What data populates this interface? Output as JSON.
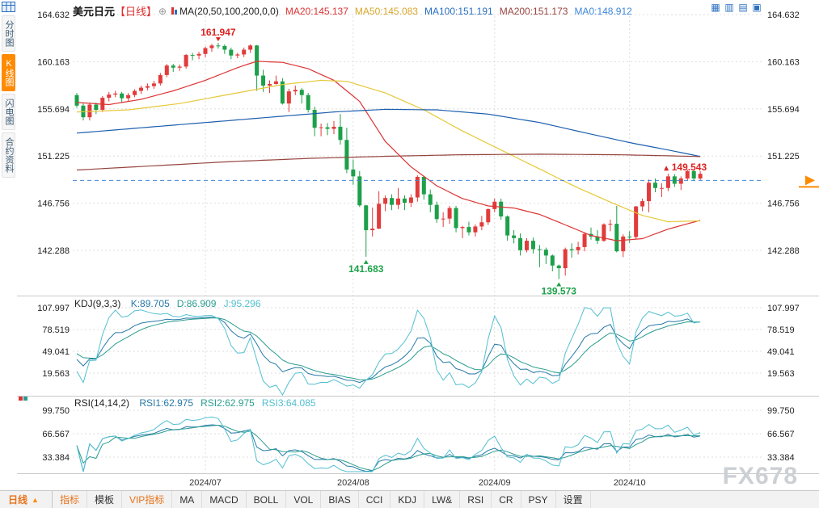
{
  "header": {
    "symbol": "美元日元",
    "period_tag": "【日线】",
    "expand_icon": "⊕",
    "ma_label": "MA(20,50,100,200,0,0)",
    "ma_items": [
      {
        "label": "MA20:145.137",
        "color": "#dd3333"
      },
      {
        "label": "MA50:145.083",
        "color": "#d9a62a"
      },
      {
        "label": "MA100:151.191",
        "color": "#2a6fc0"
      },
      {
        "label": "MA200:151.173",
        "color": "#96453f"
      },
      {
        "label": "MA0:148.912",
        "color": "#3f87d9"
      }
    ]
  },
  "sidebar": {
    "items": [
      {
        "name": "time-chart",
        "label": "分时图",
        "selected": false
      },
      {
        "name": "candle-chart",
        "label": "K线图",
        "selected": true
      },
      {
        "name": "quick-chart",
        "label": "闪电图",
        "selected": false
      },
      {
        "name": "contract-info",
        "label": "合约资料",
        "selected": false
      }
    ]
  },
  "top_right_icons": [
    {
      "name": "grid-layout-icon",
      "glyph": "▦"
    },
    {
      "name": "two-pane-layout-icon",
      "glyph": "▥"
    },
    {
      "name": "three-pane-layout-icon",
      "glyph": "▤"
    },
    {
      "name": "four-pane-layout-icon",
      "glyph": "▣"
    }
  ],
  "toolbar": {
    "period_label": "日线",
    "period_arrow": "▲",
    "items": [
      {
        "name": "indicators",
        "label": "指标",
        "accent": true
      },
      {
        "name": "templates",
        "label": "模板",
        "accent": false
      },
      {
        "name": "vip-indicators",
        "label": "VIP指标",
        "accent": true
      },
      {
        "name": "ma",
        "label": "MA",
        "accent": false
      },
      {
        "name": "macd",
        "label": "MACD",
        "accent": false
      },
      {
        "name": "boll",
        "label": "BOLL",
        "accent": false
      },
      {
        "name": "vol",
        "label": "VOL",
        "accent": false
      },
      {
        "name": "bias",
        "label": "BIAS",
        "accent": false
      },
      {
        "name": "cci",
        "label": "CCI",
        "accent": false
      },
      {
        "name": "kdj",
        "label": "KDJ",
        "accent": false
      },
      {
        "name": "lwr",
        "label": "LW&",
        "accent": false
      },
      {
        "name": "rsi",
        "label": "RSI",
        "accent": false
      },
      {
        "name": "cr",
        "label": "CR",
        "accent": false
      },
      {
        "name": "psy",
        "label": "PSY",
        "accent": false
      },
      {
        "name": "settings",
        "label": "设置",
        "accent": false
      }
    ]
  },
  "watermark": "FX678",
  "chart_data": {
    "type": "candlestick",
    "title": "美元日元 日线",
    "up_color": "#e23b3b",
    "down_color": "#1ca049",
    "grid": true,
    "price_axis_ticks": [
      "164.632",
      "160.163",
      "155.694",
      "151.225",
      "146.756",
      "142.288"
    ],
    "x_tick_labels": [
      "2024/07",
      "2024/08",
      "2024/09",
      "2024/10"
    ],
    "x_tick_indices": [
      20,
      43,
      65,
      86
    ],
    "candles_ohlc": [
      [
        157.0,
        157.2,
        155.8,
        156.0
      ],
      [
        156.0,
        156.2,
        154.6,
        154.9
      ],
      [
        154.9,
        156.3,
        154.6,
        156.1
      ],
      [
        156.1,
        156.3,
        155.2,
        155.6
      ],
      [
        155.6,
        156.9,
        155.4,
        156.75
      ],
      [
        156.75,
        157.3,
        156.4,
        157.05
      ],
      [
        157.05,
        157.4,
        156.8,
        157.15
      ],
      [
        157.15,
        157.3,
        156.3,
        156.7
      ],
      [
        156.7,
        157.2,
        156.4,
        157.0
      ],
      [
        157.0,
        157.55,
        156.8,
        157.4
      ],
      [
        157.4,
        157.9,
        157.1,
        157.7
      ],
      [
        157.7,
        158.1,
        157.45,
        157.85
      ],
      [
        157.85,
        158.35,
        157.6,
        158.1
      ],
      [
        158.1,
        159.1,
        157.9,
        158.9
      ],
      [
        158.9,
        159.95,
        158.7,
        159.8
      ],
      [
        159.8,
        159.95,
        159.2,
        159.6
      ],
      [
        159.6,
        159.9,
        159.3,
        159.7
      ],
      [
        159.7,
        160.9,
        159.5,
        160.8
      ],
      [
        160.8,
        161.0,
        160.3,
        160.75
      ],
      [
        160.75,
        161.1,
        160.4,
        160.9
      ],
      [
        160.9,
        161.6,
        160.6,
        161.45
      ],
      [
        161.45,
        161.85,
        161.1,
        161.7
      ],
      [
        161.7,
        161.947,
        161.4,
        161.65
      ],
      [
        161.65,
        161.8,
        160.9,
        161.3
      ],
      [
        161.3,
        161.5,
        160.4,
        160.75
      ],
      [
        160.75,
        161.0,
        160.5,
        160.85
      ],
      [
        160.85,
        161.5,
        160.6,
        161.3
      ],
      [
        161.3,
        161.8,
        161.0,
        161.7
      ],
      [
        161.7,
        161.75,
        157.4,
        158.85
      ],
      [
        158.85,
        159.4,
        157.3,
        157.9
      ],
      [
        157.9,
        158.4,
        157.2,
        158.05
      ],
      [
        158.05,
        158.85,
        158.0,
        158.3
      ],
      [
        158.3,
        158.6,
        156.1,
        156.2
      ],
      [
        156.2,
        157.6,
        155.4,
        157.35
      ],
      [
        157.35,
        157.9,
        157.0,
        157.5
      ],
      [
        157.5,
        157.65,
        156.2,
        157.0
      ],
      [
        157.0,
        157.2,
        155.35,
        155.6
      ],
      [
        155.6,
        155.9,
        153.1,
        153.9
      ],
      [
        153.9,
        154.3,
        153.1,
        153.95
      ],
      [
        153.95,
        154.35,
        153.2,
        153.8
      ],
      [
        153.8,
        154.55,
        153.3,
        154.0
      ],
      [
        154.0,
        155.2,
        152.3,
        152.75
      ],
      [
        152.75,
        153.9,
        149.6,
        149.95
      ],
      [
        149.95,
        150.9,
        148.5,
        149.3
      ],
      [
        149.3,
        149.8,
        146.4,
        146.55
      ],
      [
        146.55,
        146.6,
        141.683,
        144.2
      ],
      [
        144.2,
        146.35,
        143.6,
        144.35
      ],
      [
        144.35,
        147.9,
        144.3,
        146.7
      ],
      [
        146.7,
        147.5,
        146.0,
        147.25
      ],
      [
        147.25,
        147.6,
        146.1,
        146.6
      ],
      [
        146.6,
        148.2,
        146.2,
        147.2
      ],
      [
        147.2,
        147.5,
        146.1,
        146.8
      ],
      [
        146.8,
        147.6,
        146.4,
        147.3
      ],
      [
        147.3,
        149.4,
        146.9,
        149.25
      ],
      [
        149.25,
        149.35,
        147.1,
        147.6
      ],
      [
        147.6,
        148.05,
        145.9,
        146.6
      ],
      [
        146.6,
        146.9,
        144.9,
        145.25
      ],
      [
        145.25,
        145.9,
        144.5,
        145.3
      ],
      [
        145.3,
        146.5,
        144.8,
        146.3
      ],
      [
        146.3,
        146.5,
        144.0,
        144.4
      ],
      [
        144.4,
        144.6,
        143.45,
        144.5
      ],
      [
        144.5,
        145.0,
        143.7,
        144.0
      ],
      [
        144.0,
        144.75,
        143.6,
        144.55
      ],
      [
        144.55,
        145.55,
        144.2,
        144.95
      ],
      [
        144.95,
        146.25,
        144.7,
        146.2
      ],
      [
        146.2,
        147.2,
        145.9,
        146.9
      ],
      [
        146.9,
        147.2,
        145.2,
        145.5
      ],
      [
        145.5,
        145.6,
        143.2,
        143.7
      ],
      [
        143.7,
        144.2,
        142.95,
        143.45
      ],
      [
        143.45,
        143.9,
        141.8,
        142.3
      ],
      [
        142.3,
        143.45,
        142.1,
        143.2
      ],
      [
        143.2,
        143.5,
        142.0,
        142.4
      ],
      [
        142.4,
        142.8,
        140.7,
        142.35
      ],
      [
        142.35,
        142.55,
        141.0,
        141.8
      ],
      [
        141.8,
        141.9,
        140.3,
        140.85
      ],
      [
        140.85,
        140.95,
        139.573,
        140.6
      ],
      [
        140.6,
        142.55,
        139.9,
        142.4
      ],
      [
        142.4,
        142.95,
        141.6,
        142.3
      ],
      [
        142.3,
        143.1,
        141.9,
        142.6
      ],
      [
        142.6,
        144.0,
        142.2,
        143.85
      ],
      [
        143.85,
        144.45,
        143.3,
        143.6
      ],
      [
        143.6,
        144.2,
        142.9,
        143.2
      ],
      [
        143.2,
        144.85,
        143.1,
        144.75
      ],
      [
        144.75,
        145.2,
        144.1,
        144.8
      ],
      [
        144.8,
        146.5,
        142.1,
        142.2
      ],
      [
        142.2,
        143.8,
        141.65,
        143.6
      ],
      [
        143.6,
        144.1,
        143.0,
        143.55
      ],
      [
        143.55,
        146.5,
        143.4,
        146.45
      ],
      [
        146.45,
        147.2,
        146.0,
        146.95
      ],
      [
        146.95,
        149.0,
        145.9,
        148.7
      ],
      [
        148.7,
        149.1,
        147.8,
        148.2
      ],
      [
        148.2,
        148.65,
        147.35,
        148.2
      ],
      [
        148.2,
        149.55,
        147.9,
        149.3
      ],
      [
        149.3,
        149.5,
        148.3,
        148.6
      ],
      [
        148.6,
        149.3,
        148.0,
        149.1
      ],
      [
        149.1,
        149.95,
        148.9,
        149.8
      ],
      [
        149.8,
        149.95,
        148.85,
        149.1
      ],
      [
        149.1,
        149.8,
        148.95,
        149.543
      ]
    ],
    "ma_overlays": [
      {
        "name": "MA20",
        "color": "#dd3333",
        "points": [
          [
            0,
            156.3
          ],
          [
            5,
            156.1
          ],
          [
            10,
            156.6
          ],
          [
            15,
            157.4
          ],
          [
            20,
            158.4
          ],
          [
            25,
            159.6
          ],
          [
            28,
            160.2
          ],
          [
            32,
            160.1
          ],
          [
            36,
            159.5
          ],
          [
            40,
            158.4
          ],
          [
            44,
            156.4
          ],
          [
            48,
            152.6
          ],
          [
            52,
            150.2
          ],
          [
            56,
            148.4
          ],
          [
            60,
            147.2
          ],
          [
            64,
            146.5
          ],
          [
            68,
            146.3
          ],
          [
            72,
            145.7
          ],
          [
            76,
            144.7
          ],
          [
            80,
            143.7
          ],
          [
            84,
            143.2
          ],
          [
            88,
            143.4
          ],
          [
            92,
            144.3
          ],
          [
            97,
            145.137
          ]
        ]
      },
      {
        "name": "MA50",
        "color": "#e6c838",
        "points": [
          [
            0,
            155.4
          ],
          [
            8,
            155.6
          ],
          [
            16,
            156.2
          ],
          [
            24,
            157.1
          ],
          [
            32,
            158.0
          ],
          [
            38,
            158.4
          ],
          [
            42,
            158.3
          ],
          [
            48,
            157.2
          ],
          [
            54,
            155.6
          ],
          [
            60,
            153.6
          ],
          [
            66,
            151.8
          ],
          [
            72,
            150.0
          ],
          [
            78,
            148.2
          ],
          [
            84,
            146.6
          ],
          [
            88,
            145.6
          ],
          [
            92,
            145.0
          ],
          [
            97,
            145.083
          ]
        ]
      },
      {
        "name": "MA100",
        "color": "#1d5fae",
        "points": [
          [
            0,
            153.4
          ],
          [
            10,
            153.9
          ],
          [
            20,
            154.4
          ],
          [
            30,
            154.9
          ],
          [
            40,
            155.4
          ],
          [
            48,
            155.65
          ],
          [
            56,
            155.6
          ],
          [
            64,
            155.2
          ],
          [
            72,
            154.4
          ],
          [
            80,
            153.3
          ],
          [
            86,
            152.5
          ],
          [
            92,
            151.8
          ],
          [
            97,
            151.191
          ]
        ]
      },
      {
        "name": "MA200",
        "color": "#96453f",
        "points": [
          [
            0,
            149.9
          ],
          [
            12,
            150.3
          ],
          [
            24,
            150.7
          ],
          [
            36,
            151.0
          ],
          [
            48,
            151.2
          ],
          [
            60,
            151.35
          ],
          [
            72,
            151.4
          ],
          [
            84,
            151.35
          ],
          [
            92,
            151.25
          ],
          [
            97,
            151.173
          ]
        ]
      }
    ],
    "reference_line": {
      "value": 148.912,
      "color": "#3f87d9",
      "style": "dashed"
    },
    "price_marker": {
      "value": 148.912,
      "color": "#ff8a00"
    },
    "annotations": [
      {
        "index": 22,
        "price": 161.947,
        "text": "161.947",
        "color": "#dd2222",
        "placement": "above"
      },
      {
        "index": 45,
        "price": 141.683,
        "text": "141.683",
        "color": "#1ca049",
        "placement": "below"
      },
      {
        "index": 75,
        "price": 139.573,
        "text": "139.573",
        "color": "#1ca049",
        "placement": "below"
      },
      {
        "index": 97,
        "price": 149.543,
        "text": "149.543",
        "color": "#dd2222",
        "placement": "left"
      }
    ],
    "kdj": {
      "title": "KDJ(9,3,3)",
      "params": [
        9,
        3,
        3
      ],
      "axis_ticks": [
        "107.997",
        "78.519",
        "49.041",
        "19.563"
      ],
      "values": [
        {
          "label": "K:89.705",
          "color": "#2779a8"
        },
        {
          "label": "D:86.909",
          "color": "#2a9d8f"
        },
        {
          "label": "J:95.296",
          "color": "#52bfd0"
        }
      ]
    },
    "rsi": {
      "title": "RSI(14,14,2)",
      "params": [
        14,
        14,
        2
      ],
      "axis_ticks": [
        "99.750",
        "66.567",
        "33.384"
      ],
      "values": [
        {
          "label": "RSI1:62.975",
          "color": "#2779a8"
        },
        {
          "label": "RSI2:62.975",
          "color": "#2a9d8f"
        },
        {
          "label": "RSI3:64.085",
          "color": "#52bfd0"
        }
      ]
    }
  }
}
